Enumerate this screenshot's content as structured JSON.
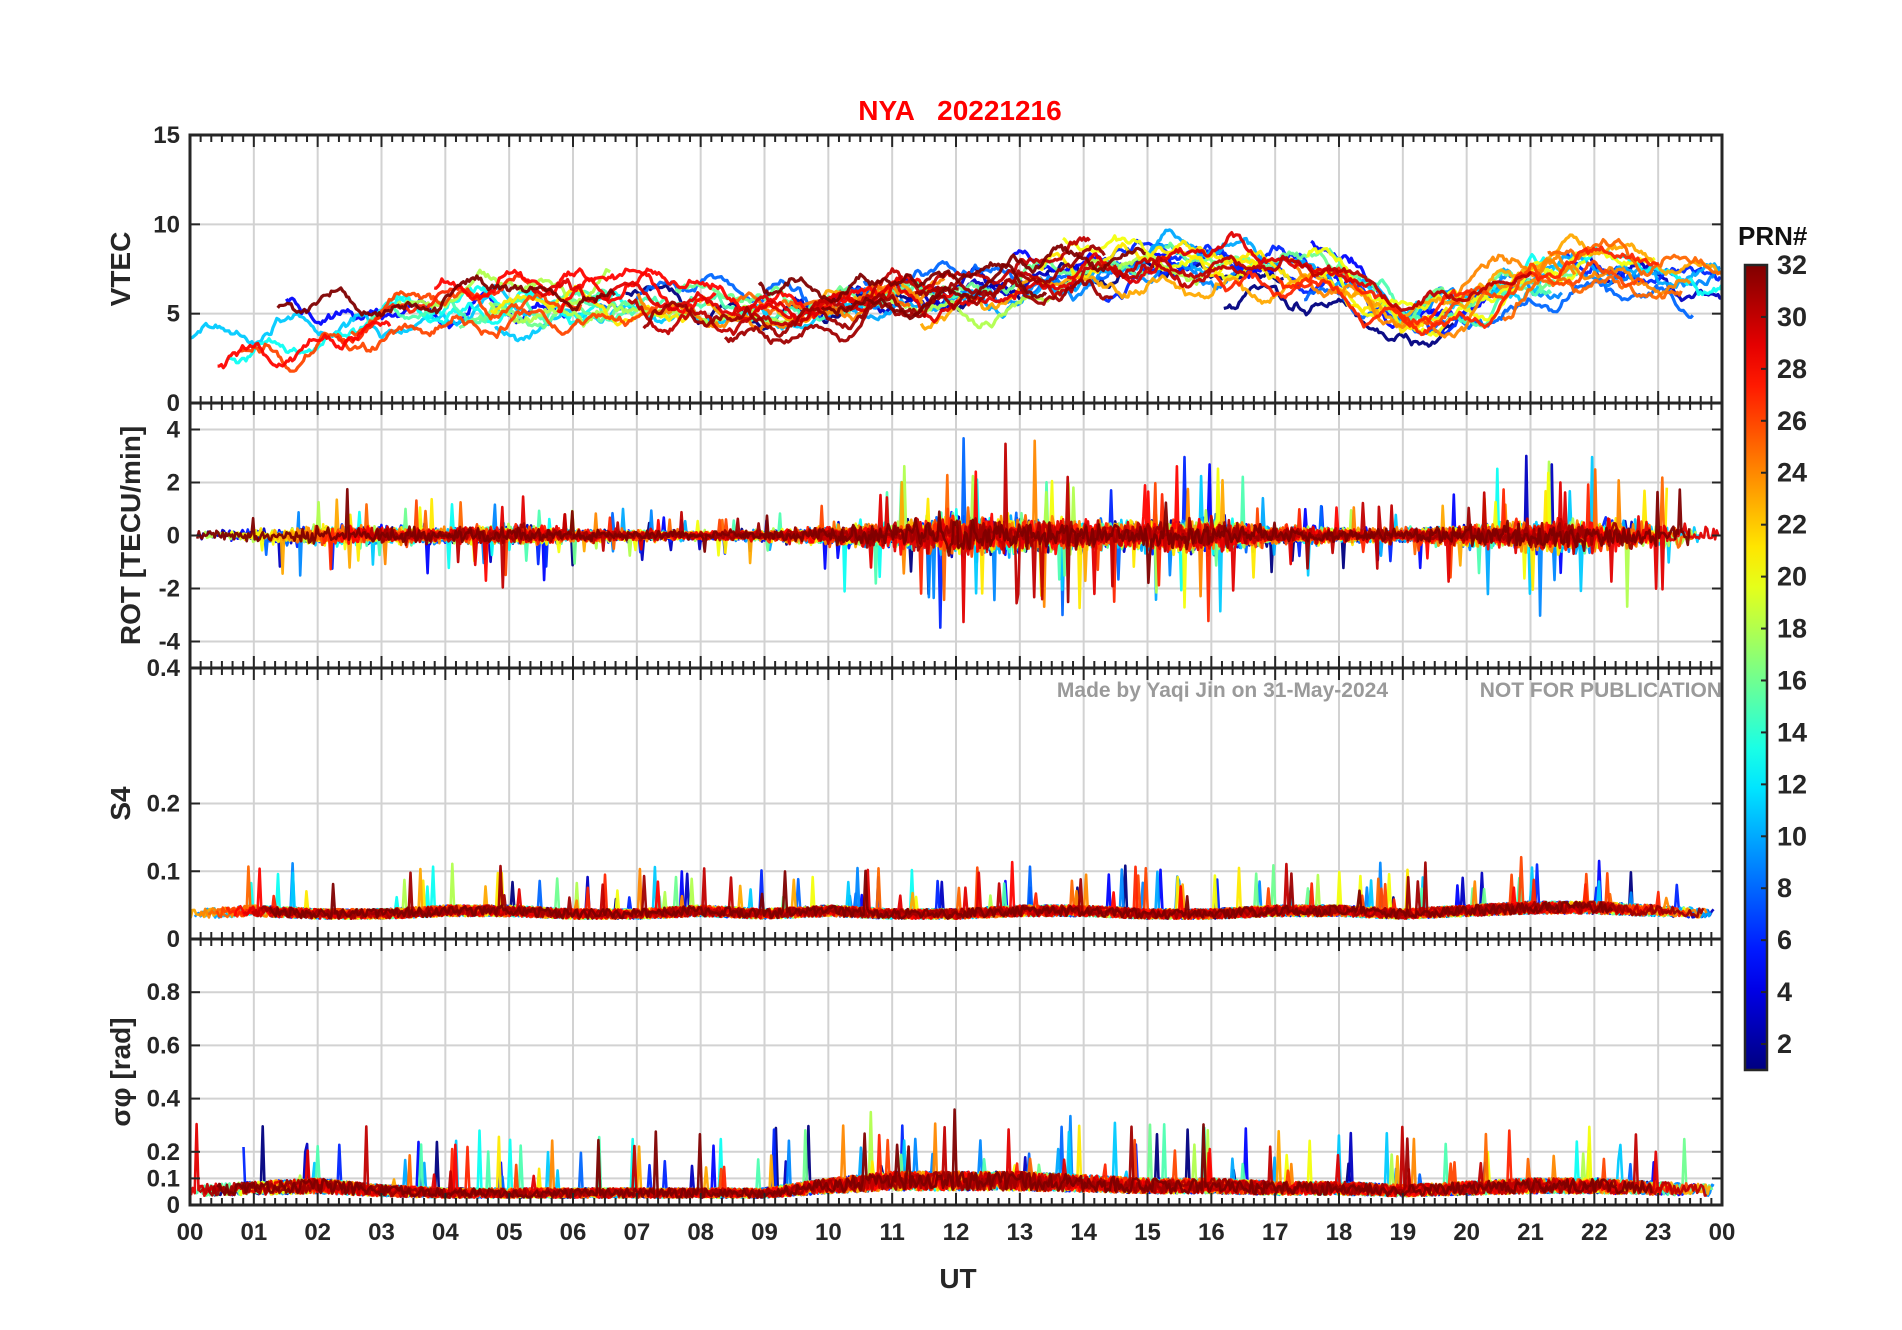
{
  "figure": {
    "station": "NYA",
    "date": "20221216",
    "watermark_left": "Made by Yaqi Jin on 31-May-2024",
    "watermark_right": "NOT FOR PUBLICATION",
    "xlabel": "UT"
  },
  "chart_data": {
    "type": "line",
    "title": "NYA   20221216",
    "x_ticks": [
      "00",
      "01",
      "02",
      "03",
      "04",
      "05",
      "06",
      "07",
      "08",
      "09",
      "10",
      "11",
      "12",
      "13",
      "14",
      "15",
      "16",
      "17",
      "18",
      "19",
      "20",
      "21",
      "22",
      "23",
      "00"
    ],
    "xlim": [
      0,
      24
    ],
    "xlabel": "UT",
    "panels": [
      {
        "id": "vtec",
        "ylabel": "VTEC",
        "ylim": [
          0,
          15
        ],
        "yticks": [
          0,
          5,
          10,
          15
        ],
        "baseline": [
          3.5,
          3.6,
          4.0,
          4.5,
          4.9,
          5.5,
          5.6,
          5.8,
          5.6,
          5.2,
          5.6,
          6.3,
          6.2,
          6.6,
          7.2,
          7.6,
          7.6,
          7.6,
          7.2,
          5.0,
          5.5,
          7.0,
          7.6,
          7.0,
          6.5
        ],
        "spread": 2.3
      },
      {
        "id": "rot",
        "ylabel": "ROT [TECU/min]",
        "ylim": [
          -5,
          5
        ],
        "yticks": [
          -4,
          -2,
          0,
          2,
          4
        ],
        "envelope": [
          0.9,
          0.9,
          1.6,
          1.4,
          1.2,
          1.6,
          1.0,
          0.8,
          0.7,
          0.8,
          1.5,
          1.9,
          3.4,
          2.8,
          2.2,
          2.4,
          2.6,
          1.4,
          1.2,
          1.0,
          1.6,
          2.4,
          2.8,
          2.0,
          1.4
        ]
      },
      {
        "id": "s4",
        "ylabel": "S4",
        "ylim": [
          0,
          0.4
        ],
        "yticks": [
          0,
          0.1,
          0.2,
          0.4
        ],
        "baseline": [
          0.04,
          0.045,
          0.04,
          0.04,
          0.045,
          0.045,
          0.04,
          0.04,
          0.045,
          0.04,
          0.045,
          0.04,
          0.04,
          0.045,
          0.045,
          0.04,
          0.04,
          0.045,
          0.045,
          0.04,
          0.045,
          0.05,
          0.05,
          0.045,
          0.04
        ]
      },
      {
        "id": "sigma_phi",
        "ylabel": "σφ [rad]",
        "ylim": [
          0,
          1
        ],
        "yticks": [
          0,
          0.1,
          0.2,
          0.4,
          0.6,
          0.8
        ],
        "baseline": [
          0.06,
          0.07,
          0.08,
          0.06,
          0.05,
          0.05,
          0.05,
          0.05,
          0.05,
          0.05,
          0.08,
          0.1,
          0.1,
          0.1,
          0.09,
          0.08,
          0.08,
          0.07,
          0.07,
          0.06,
          0.07,
          0.08,
          0.08,
          0.07,
          0.06
        ]
      }
    ],
    "colorbar": {
      "title": "PRN#",
      "range": [
        1,
        32
      ],
      "ticks": [
        2,
        4,
        6,
        8,
        10,
        12,
        14,
        16,
        18,
        20,
        22,
        24,
        26,
        28,
        30,
        32
      ],
      "colormap": "jet"
    },
    "series_prn": [
      1,
      3,
      5,
      6,
      8,
      9,
      10,
      11,
      13,
      15,
      16,
      18,
      20,
      21,
      23,
      24,
      25,
      26,
      27,
      28,
      29,
      30,
      31,
      32
    ]
  }
}
